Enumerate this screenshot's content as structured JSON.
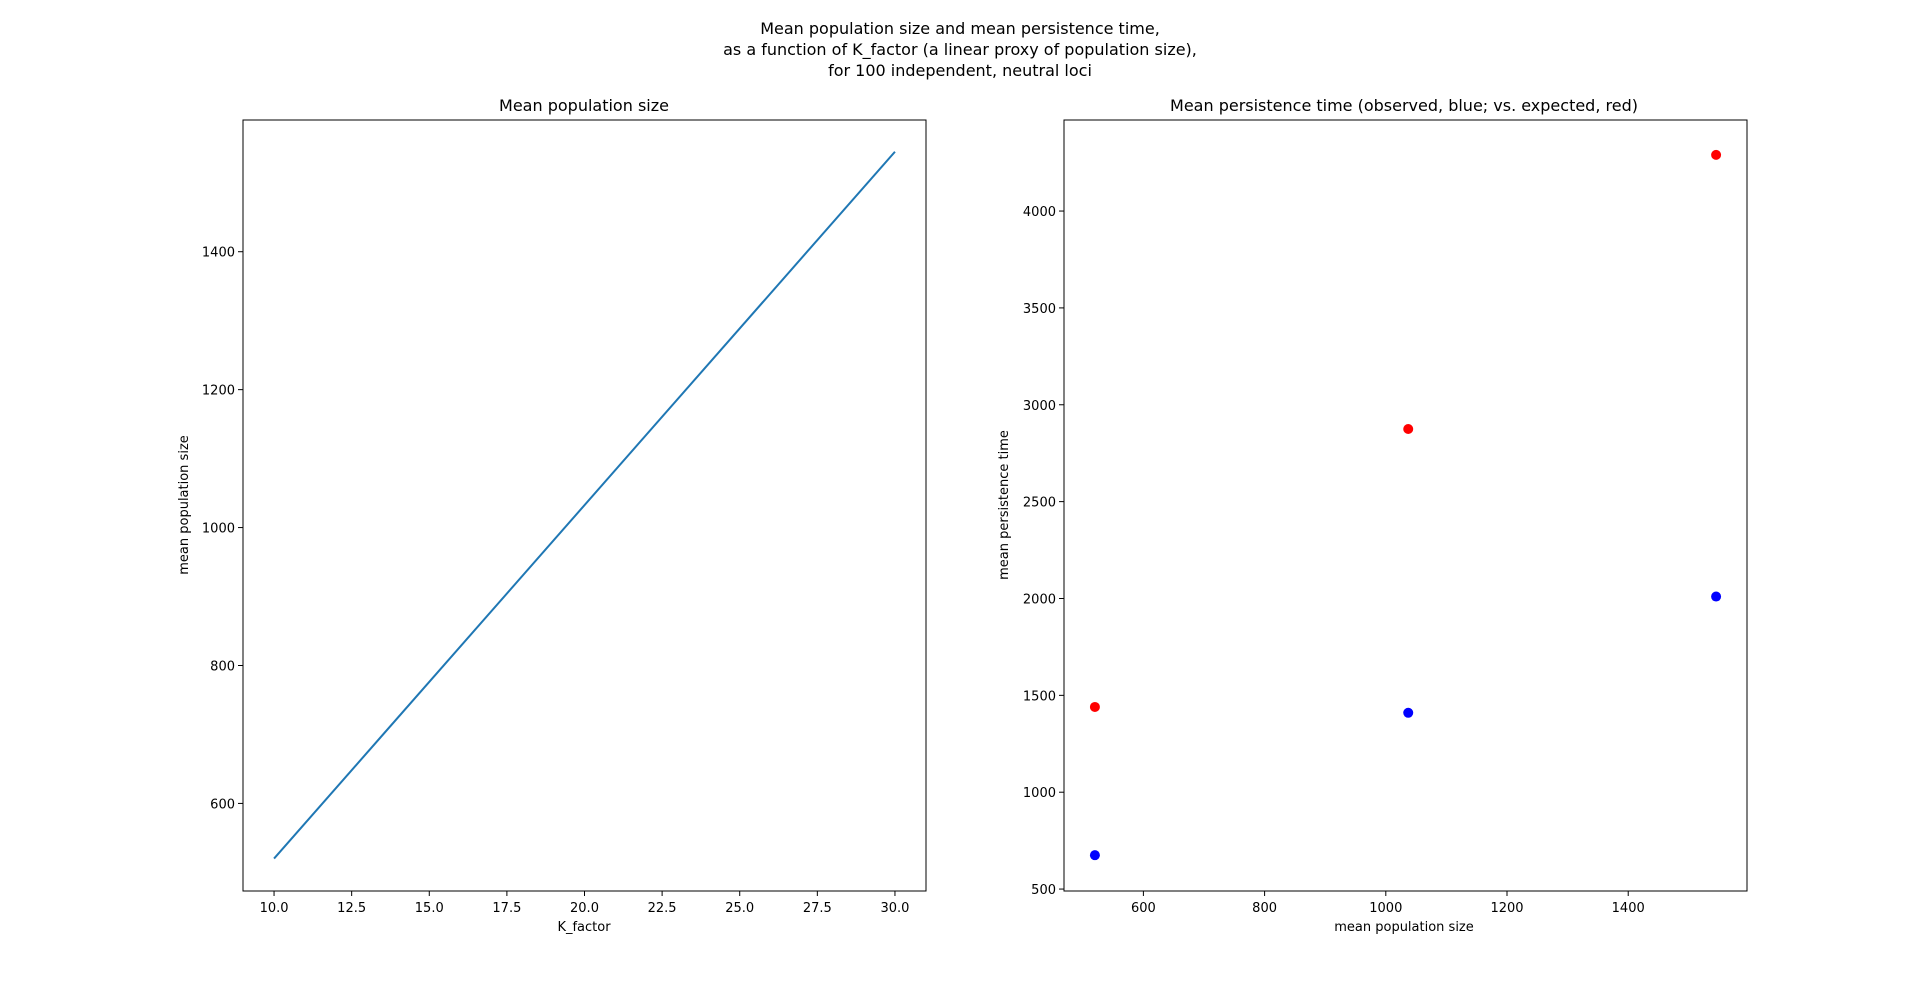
{
  "figure": {
    "suptitle_lines": [
      "Mean population size and mean persistence time,",
      "as a function of K_factor (a linear proxy of population size),",
      "for 100 independent, neutral loci"
    ]
  },
  "chart_data": [
    {
      "type": "line",
      "title": "Mean population size",
      "xlabel": "K_factor",
      "ylabel": "mean population size",
      "xlim": [
        9.0,
        31.0
      ],
      "ylim": [
        473,
        1591
      ],
      "xticks": [
        "10.0",
        "12.5",
        "15.0",
        "17.5",
        "20.0",
        "22.5",
        "25.0",
        "27.5",
        "30.0"
      ],
      "yticks": [
        "600",
        "800",
        "1000",
        "1200",
        "1400"
      ],
      "grid": false,
      "series": [
        {
          "color": "#1f77b4",
          "x": [
            10,
            30
          ],
          "y": [
            520,
            1545
          ]
        }
      ]
    },
    {
      "type": "scatter",
      "title": "Mean persistence time (observed, blue; vs. expected, red)",
      "xlabel": "mean population size",
      "ylabel": "mean persistence time",
      "xlim": [
        469,
        1596
      ],
      "ylim": [
        490,
        4470
      ],
      "xticks": [
        "600",
        "800",
        "1000",
        "1200",
        "1400"
      ],
      "yticks": [
        "500",
        "1000",
        "1500",
        "2000",
        "2500",
        "3000",
        "3500",
        "4000"
      ],
      "grid": false,
      "series": [
        {
          "color": "#0000ff",
          "x": [
            520,
            1037,
            1545
          ],
          "y": [
            675,
            1410,
            2010
          ]
        },
        {
          "color": "#ff0000",
          "x": [
            520,
            1037,
            1545
          ],
          "y": [
            1440,
            2875,
            4290
          ]
        }
      ]
    }
  ]
}
